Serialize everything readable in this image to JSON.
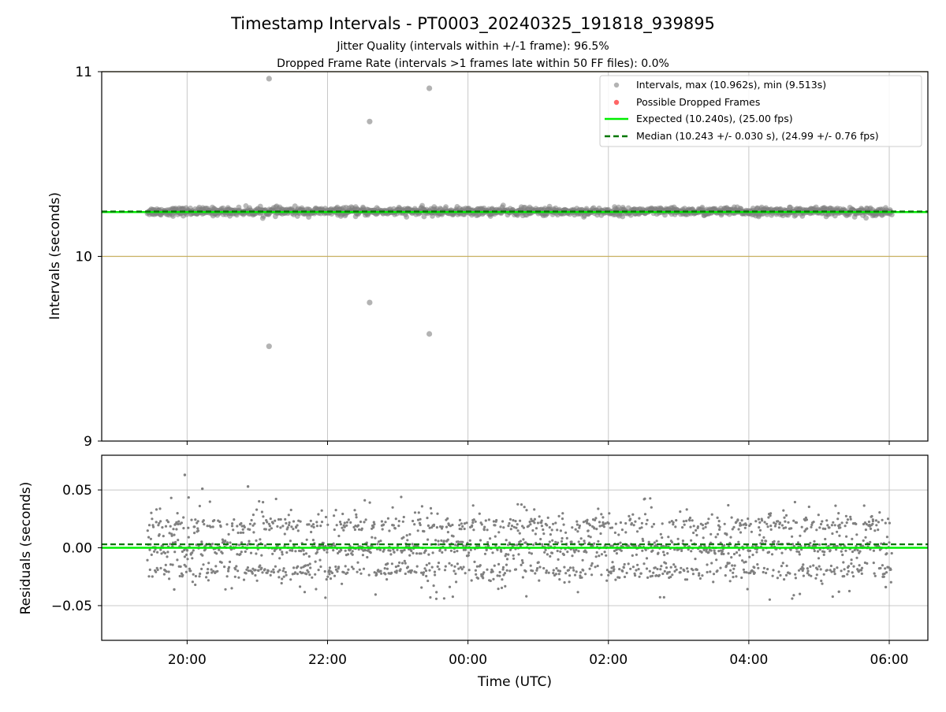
{
  "figure": {
    "title": "Timestamp Intervals - PT0003_20240325_191818_939895",
    "subtitle_1": "Jitter Quality (intervals within +/-1 frame): 96.5%",
    "subtitle_2": "Dropped Frame Rate (intervals >1 frames late within 50 FF files): 0.0%",
    "xlabel": "Time (UTC)"
  },
  "colors": {
    "points": "#808080",
    "dropped": "#ff0000",
    "expected": "#00ee00",
    "median": "#007700",
    "bounds": "#c8b060",
    "grid": "#b0b0b0"
  },
  "chart_data": [
    {
      "type": "scatter",
      "panel": "intervals",
      "ylabel": "Intervals (seconds)",
      "x_axis": {
        "type": "time",
        "ticks": [
          "20:00",
          "22:00",
          "00:00",
          "02:00",
          "04:00",
          "06:00"
        ],
        "range": [
          "2024-03-25T18:47",
          "2024-03-26T06:33"
        ]
      },
      "ylim": [
        9,
        11
      ],
      "yticks": [
        9,
        10,
        11
      ],
      "grid": true,
      "legend_position": "top-right",
      "legend": [
        "Intervals, max (10.962s), min (9.513s)",
        "Possible Dropped Frames",
        "Expected (10.240s), (25.00 fps)",
        "Median (10.243 +/- 0.030 s), (24.99 +/- 0.76 fps)"
      ],
      "expected": 10.24,
      "median": 10.243,
      "bounds": [
        10,
        11
      ],
      "series": [
        {
          "legend": "Intervals, max (10.962s), min (9.513s)",
          "band": {
            "time_range": [
              "2024-03-25T19:26",
              "2024-03-26T06:02"
            ],
            "center": 10.243,
            "spread": 0.03
          },
          "outliers": [
            {
              "t": "2024-03-25T21:10",
              "y": 10.962
            },
            {
              "t": "2024-03-25T21:10",
              "y": 9.513
            },
            {
              "t": "2024-03-25T22:36",
              "y": 10.73
            },
            {
              "t": "2024-03-25T22:36",
              "y": 9.75
            },
            {
              "t": "2024-03-25T23:27",
              "y": 10.91
            },
            {
              "t": "2024-03-25T23:27",
              "y": 9.58
            }
          ]
        },
        {
          "legend": "Possible Dropped Frames",
          "points": []
        }
      ]
    },
    {
      "type": "scatter",
      "panel": "residuals",
      "ylabel": "Residuals (seconds)",
      "x_axis": {
        "type": "time",
        "ticks": [
          "20:00",
          "22:00",
          "00:00",
          "02:00",
          "04:00",
          "06:00"
        ],
        "range": [
          "2024-03-25T18:47",
          "2024-03-26T06:33"
        ]
      },
      "ylim": [
        -0.08,
        0.08
      ],
      "yticks": [
        0.05,
        0.0,
        -0.05
      ],
      "ytick_labels": [
        "0.05",
        "0.00",
        "−0.05"
      ],
      "grid": true,
      "expected": 0.0,
      "median": 0.003,
      "series": [
        {
          "name": "residuals",
          "time_range": [
            "2024-03-25T19:26",
            "2024-03-26T06:02"
          ],
          "clusters": [
            -0.02,
            0.0,
            0.02
          ],
          "extremes": [
            {
              "t": "2024-03-25T19:58",
              "y": 0.063
            },
            {
              "t": "2024-03-25T20:13",
              "y": 0.051
            },
            {
              "t": "2024-03-25T20:52",
              "y": 0.053
            },
            {
              "t": "2024-03-25T19:49",
              "y": -0.036
            },
            {
              "t": "2024-03-26T05:17",
              "y": -0.038
            },
            {
              "t": "2024-03-26T05:57",
              "y": -0.034
            }
          ]
        }
      ]
    }
  ]
}
